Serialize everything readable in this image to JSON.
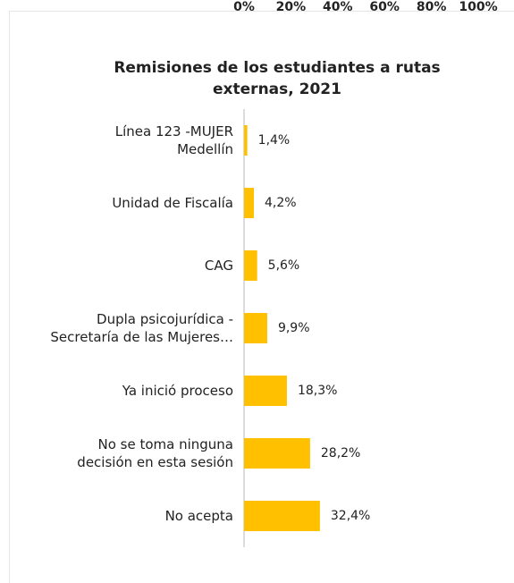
{
  "chart_data": {
    "type": "barh",
    "title": "Remisiones de los estudiantes a rutas\nexternas, 2021",
    "categories": [
      "Línea 123 -MUJER\nMedellín",
      "Unidad de Fiscalía",
      "CAG",
      "Dupla psicojurídica -\nSecretaría de las Mujeres…",
      "Ya inició proceso",
      "No se toma ninguna\ndecisión en esta sesión",
      "No acepta"
    ],
    "values": [
      1.4,
      4.2,
      5.6,
      9.9,
      18.3,
      28.2,
      32.4
    ],
    "value_labels": [
      "1,4%",
      "4,2%",
      "5,6%",
      "9,9%",
      "18,3%",
      "28,2%",
      "32,4%"
    ],
    "color": "#ffc000",
    "xlim": [
      0,
      100
    ],
    "xticks": [
      {
        "value": 0,
        "label": "0%"
      },
      {
        "value": 20,
        "label": "20%"
      },
      {
        "value": 40,
        "label": "40%"
      },
      {
        "value": 60,
        "label": "60%"
      },
      {
        "value": 80,
        "label": "80%"
      },
      {
        "value": 100,
        "label": "100%"
      }
    ]
  }
}
